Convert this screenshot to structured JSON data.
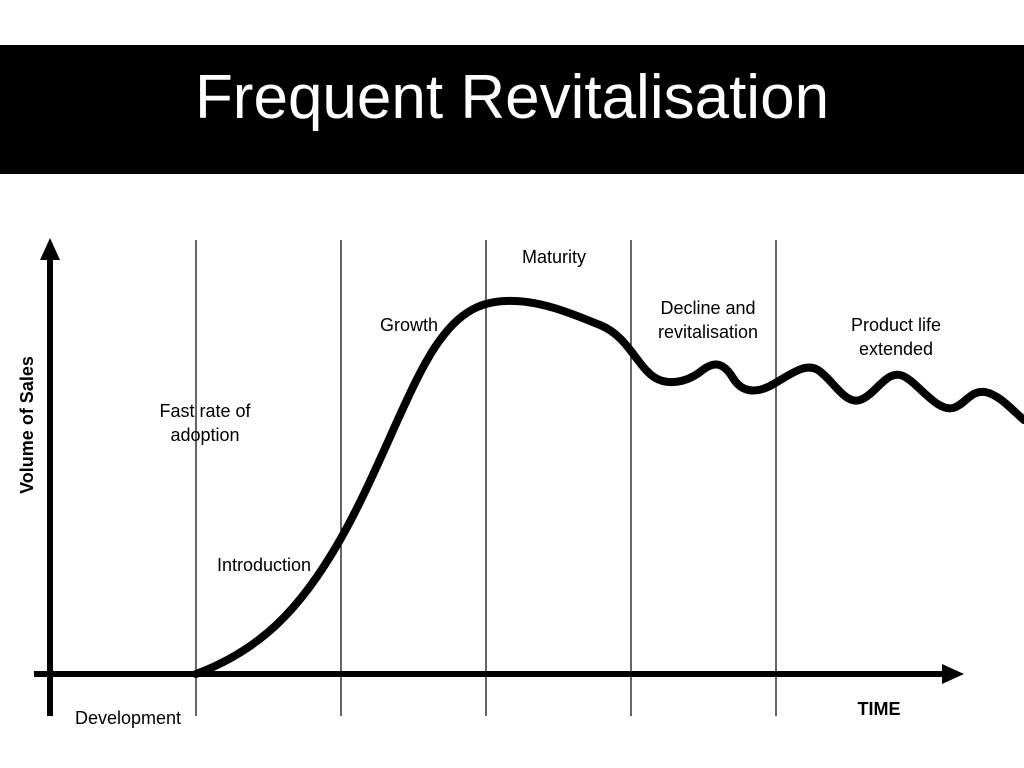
{
  "slide": {
    "title": "Frequent Revitalisation"
  },
  "diagram": {
    "y_axis_label": "Volume of Sales",
    "x_axis_label": "TIME",
    "stages": {
      "development": "Development",
      "introduction": "Introduction",
      "fast_rate_line1": "Fast rate of",
      "fast_rate_line2": "adoption",
      "growth": "Growth",
      "maturity": "Maturity",
      "decline_line1": "Decline and",
      "decline_line2": "revitalisation",
      "extended_line1": "Product life",
      "extended_line2": "extended"
    },
    "colors": {
      "title_bar": "#000000",
      "title_text": "#ffffff",
      "lines": "#000000"
    }
  }
}
